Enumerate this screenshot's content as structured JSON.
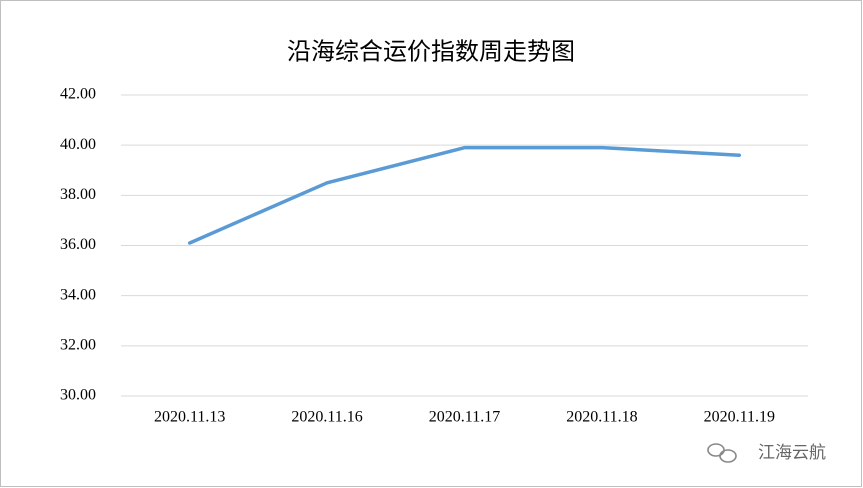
{
  "chart_data": {
    "type": "line",
    "title": "沿海综合运价指数周走势图",
    "categories": [
      "2020.11.13",
      "2020.11.16",
      "2020.11.17",
      "2020.11.18",
      "2020.11.19"
    ],
    "series": [
      {
        "name": "沿海综合运价指数",
        "color": "#5b9bd5",
        "values": [
          36.1,
          38.5,
          39.9,
          39.9,
          39.6
        ]
      }
    ],
    "ylim": [
      30,
      42
    ],
    "yticks": [
      {
        "value": 30,
        "label": "30.00"
      },
      {
        "value": 32,
        "label": "32.00"
      },
      {
        "value": 34,
        "label": "34.00"
      },
      {
        "value": 36,
        "label": "36.00"
      },
      {
        "value": 38,
        "label": "38.00"
      },
      {
        "value": 40,
        "label": "40.00"
      },
      {
        "value": 42,
        "label": "42.00"
      }
    ],
    "grid": true
  },
  "watermark": "江海云航"
}
